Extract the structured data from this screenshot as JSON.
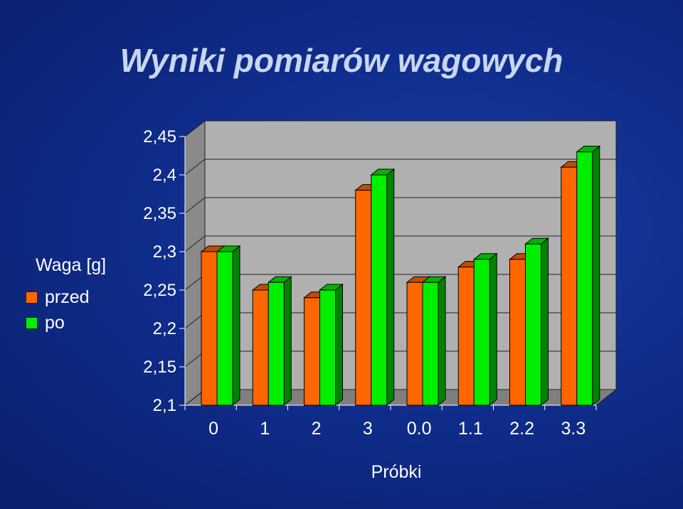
{
  "chart_data": {
    "type": "bar",
    "title": "Wyniki pomiarów wagowych",
    "xlabel": "Próbki",
    "ylabel": "",
    "legend_title": "Waga [g]",
    "legend_position": "left",
    "categories": [
      "0",
      "1",
      "2",
      "3",
      "0.0",
      "1.1",
      "2.2",
      "3.3"
    ],
    "yticks": [
      "2,1",
      "2,15",
      "2,2",
      "2,25",
      "2,3",
      "2,35",
      "2,4",
      "2,45"
    ],
    "ylim": [
      2.1,
      2.45
    ],
    "grid": true,
    "series": [
      {
        "name": "przed",
        "color": "#ff6600",
        "values": [
          2.3,
          2.25,
          2.24,
          2.38,
          2.26,
          2.28,
          2.29,
          2.41
        ]
      },
      {
        "name": "po",
        "color": "#00ee00",
        "values": [
          2.3,
          2.26,
          2.25,
          2.4,
          2.26,
          2.29,
          2.31,
          2.43
        ]
      }
    ]
  }
}
